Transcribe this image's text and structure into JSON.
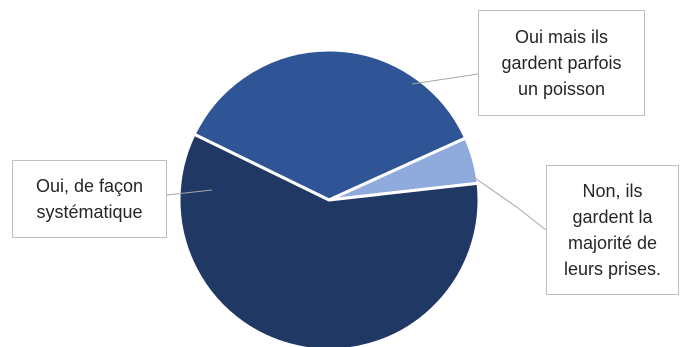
{
  "chart_data": {
    "type": "pie",
    "slices": [
      {
        "label": "Oui mais ils gardent parfois un poisson",
        "value": 36,
        "color": "#2f5597"
      },
      {
        "label": "Non, ils gardent la majorité de leurs prises.",
        "value": 5,
        "color": "#8faadc"
      },
      {
        "label": "Oui, de façon systématique",
        "value": 59,
        "color": "#203864"
      }
    ],
    "data_labels": [
      {
        "text": "Oui mais ils\ngardent parfois\nun poisson"
      },
      {
        "text": "Non, ils\ngardent la\nmajorité de\nleurs prises."
      },
      {
        "text": "Oui, de façon\nsystématique"
      }
    ],
    "legend": "none",
    "title": ""
  },
  "colors": {
    "leader_line": "#a6a6a6",
    "slice_border": "#ffffff"
  }
}
